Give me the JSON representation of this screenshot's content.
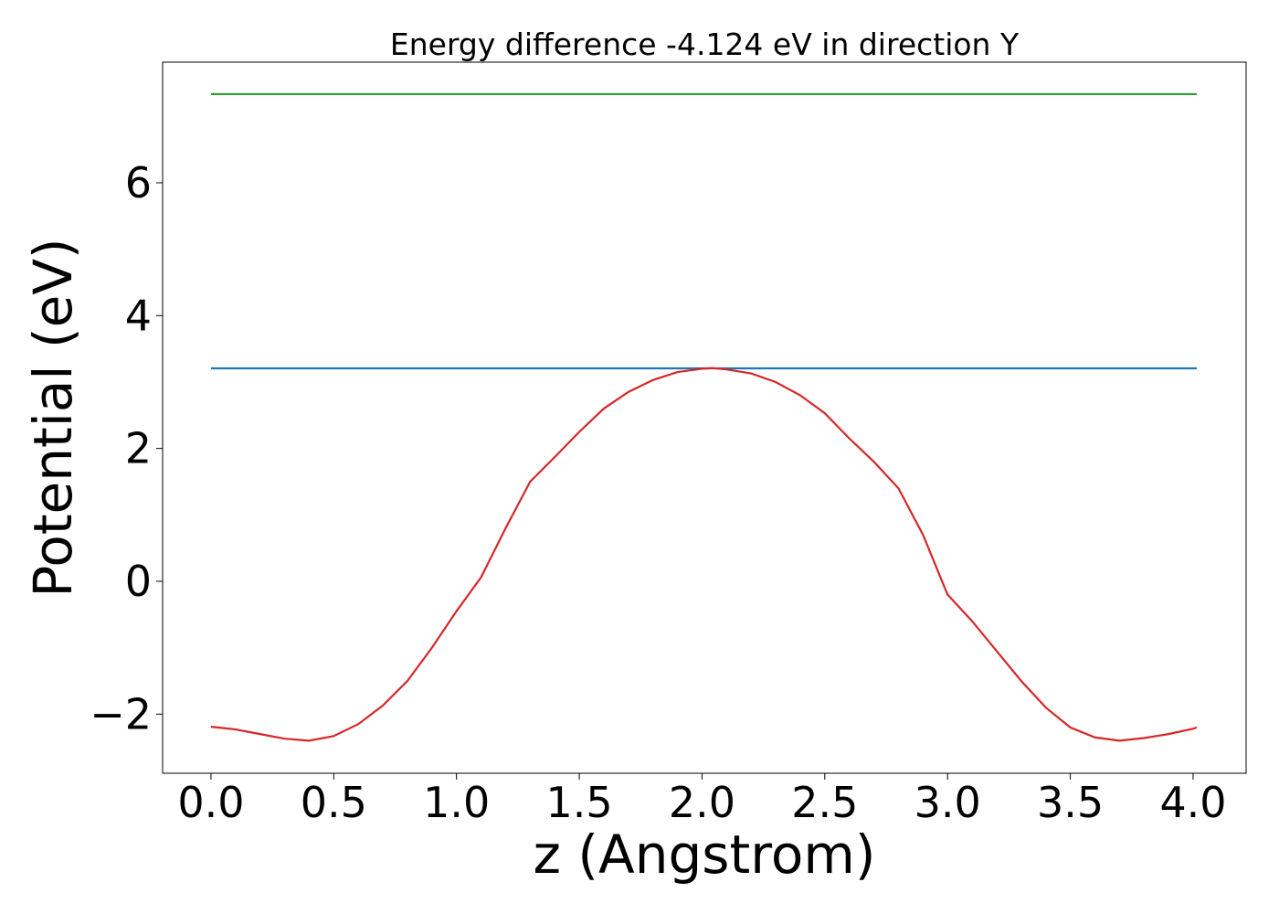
{
  "chart_data": {
    "type": "line",
    "title": "Energy difference -4.124 eV in direction Y",
    "x_label": "z (Angstrom)",
    "y_label": "Potential (eV)",
    "xlim": [
      -0.197,
      4.216
    ],
    "ylim": [
      -2.89,
      7.816
    ],
    "xticks": [
      {
        "value": 0,
        "label": "0.0"
      },
      {
        "value": 0.5,
        "label": "0.5"
      },
      {
        "value": 1,
        "label": "1.0"
      },
      {
        "value": 1.5,
        "label": "1.5"
      },
      {
        "value": 2,
        "label": "2.0"
      },
      {
        "value": 2.5,
        "label": "2.5"
      },
      {
        "value": 3,
        "label": "3.0"
      },
      {
        "value": 3.5,
        "label": "3.5"
      },
      {
        "value": 4,
        "label": "4.0"
      }
    ],
    "yticks": [
      {
        "value": -2,
        "label": "−2"
      },
      0,
      2,
      4,
      6
    ],
    "grid": false,
    "series": [
      {
        "color": "#2ca02c",
        "x": [
          0,
          4.015
        ],
        "values": [
          7.335,
          7.335
        ]
      },
      {
        "color": "#1f77b4",
        "x": [
          0,
          4.015
        ],
        "values": [
          3.206,
          3.206
        ]
      },
      {
        "color": "#d62728",
        "x": [
          0,
          0.1,
          0.2,
          0.3,
          0.4,
          0.5,
          0.6,
          0.7,
          0.8,
          0.9,
          1.0,
          1.1,
          1.2,
          1.3,
          1.4,
          1.5,
          1.6,
          1.7,
          1.8,
          1.9,
          2.0,
          2.04,
          2.1,
          2.2,
          2.3,
          2.4,
          2.5,
          2.6,
          2.7,
          2.8,
          2.9,
          3.0,
          3.1,
          3.2,
          3.3,
          3.4,
          3.5,
          3.6,
          3.7,
          3.8,
          3.9,
          4.0,
          4.015
        ],
        "values": [
          -2.19,
          -2.23,
          -2.3,
          -2.37,
          -2.4,
          -2.33,
          -2.15,
          -1.87,
          -1.5,
          -1.0,
          -0.45,
          0.06,
          0.8,
          1.5,
          1.87,
          2.25,
          2.6,
          2.85,
          3.03,
          3.15,
          3.2,
          3.21,
          3.19,
          3.13,
          3.0,
          2.8,
          2.53,
          2.15,
          1.8,
          1.4,
          0.7,
          -0.2,
          -0.6,
          -1.05,
          -1.5,
          -1.9,
          -2.2,
          -2.35,
          -2.4,
          -2.36,
          -2.3,
          -2.22,
          -2.2
        ]
      }
    ]
  }
}
